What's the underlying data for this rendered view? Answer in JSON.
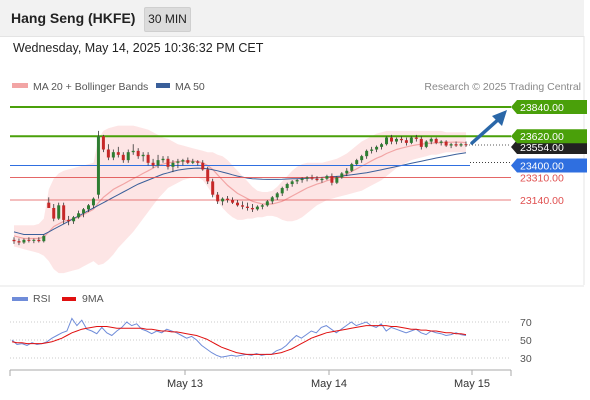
{
  "header": {
    "title": "Hang Seng (HKFE)",
    "interval": "30 MIN",
    "datetime": "Wednesday, May 14, 2025 10:36:32 PM CET"
  },
  "legend": {
    "ma20_label": "MA 20 + Bollinger Bands",
    "ma50_label": "MA 50",
    "copyright": "Research © 2025 Trading Central",
    "rsi_label": "RSI",
    "rsi_ma_label": "9MA"
  },
  "colors": {
    "up": "#2e7d32",
    "down": "#c62828",
    "band": "#fcdcdc",
    "ma20": "#f2a5a5",
    "ma50": "#3a5f9a",
    "target": "#4aa00a",
    "pivot": "#2f6fe0",
    "support": "#e05050",
    "current": "#222222",
    "rsi": "#6f8cd9",
    "rsi_ma": "#e01010",
    "arrow": "#2a67a8"
  },
  "chart_data": [
    {
      "type": "candlestick",
      "name": "price",
      "ylim": [
        22700,
        24000
      ],
      "x_ticks": [
        "May 13",
        "May 14",
        "May 15"
      ],
      "levels": [
        {
          "value": 23840.0,
          "label": "23840.00",
          "role": "target"
        },
        {
          "value": 23620.0,
          "label": "23620.00",
          "role": "target"
        },
        {
          "value": 23554.0,
          "label": "23554.00",
          "role": "current"
        },
        {
          "value": 23400.0,
          "label": "23400.00",
          "role": "pivot"
        },
        {
          "value": 23310.0,
          "label": "23310.00",
          "role": "support"
        },
        {
          "value": 23140.0,
          "label": "23140.00",
          "role": "support"
        }
      ],
      "candles": [
        [
          22840,
          22860,
          22810,
          22830
        ],
        [
          22830,
          22850,
          22800,
          22820
        ],
        [
          22820,
          22850,
          22810,
          22840
        ],
        [
          22840,
          22860,
          22820,
          22835
        ],
        [
          22835,
          22850,
          22815,
          22840
        ],
        [
          22840,
          22860,
          22820,
          22830
        ],
        [
          22830,
          22880,
          22820,
          22870
        ],
        [
          23120,
          23160,
          23080,
          23080
        ],
        [
          23080,
          23110,
          22980,
          23000
        ],
        [
          23000,
          23120,
          22990,
          23100
        ],
        [
          23100,
          23120,
          22960,
          22990
        ],
        [
          22990,
          23020,
          22950,
          22980
        ],
        [
          22980,
          23020,
          22960,
          23010
        ],
        [
          23010,
          23060,
          23000,
          23040
        ],
        [
          23040,
          23080,
          23010,
          23070
        ],
        [
          23070,
          23110,
          23050,
          23100
        ],
        [
          23100,
          23160,
          23080,
          23150
        ],
        [
          23180,
          23660,
          23150,
          23620
        ],
        [
          23620,
          23630,
          23500,
          23520
        ],
        [
          23520,
          23560,
          23440,
          23460
        ],
        [
          23460,
          23520,
          23440,
          23500
        ],
        [
          23500,
          23540,
          23460,
          23480
        ],
        [
          23480,
          23500,
          23420,
          23440
        ],
        [
          23440,
          23520,
          23420,
          23500
        ],
        [
          23500,
          23560,
          23480,
          23510
        ],
        [
          23510,
          23530,
          23450,
          23470
        ],
        [
          23470,
          23500,
          23430,
          23480
        ],
        [
          23480,
          23500,
          23400,
          23420
        ],
        [
          23420,
          23450,
          23380,
          23400
        ],
        [
          23400,
          23480,
          23380,
          23440
        ],
        [
          23440,
          23470,
          23420,
          23450
        ],
        [
          23450,
          23470,
          23370,
          23390
        ],
        [
          23390,
          23440,
          23350,
          23420
        ],
        [
          23420,
          23450,
          23380,
          23430
        ],
        [
          23430,
          23450,
          23400,
          23440
        ],
        [
          23440,
          23460,
          23410,
          23420
        ],
        [
          23420,
          23450,
          23410,
          23430
        ],
        [
          23430,
          23440,
          23400,
          23420
        ],
        [
          23420,
          23440,
          23360,
          23370
        ],
        [
          23370,
          23390,
          23260,
          23280
        ],
        [
          23280,
          23300,
          23160,
          23180
        ],
        [
          23180,
          23200,
          23110,
          23130
        ],
        [
          23130,
          23160,
          23100,
          23150
        ],
        [
          23150,
          23170,
          23120,
          23140
        ],
        [
          23140,
          23160,
          23110,
          23120
        ],
        [
          23120,
          23140,
          23090,
          23100
        ],
        [
          23100,
          23130,
          23070,
          23090
        ],
        [
          23090,
          23120,
          23060,
          23080
        ],
        [
          23080,
          23110,
          23050,
          23070
        ],
        [
          23070,
          23100,
          23060,
          23090
        ],
        [
          23090,
          23110,
          23070,
          23100
        ],
        [
          23100,
          23140,
          23090,
          23130
        ],
        [
          23130,
          23170,
          23110,
          23160
        ],
        [
          23160,
          23200,
          23140,
          23190
        ],
        [
          23190,
          23240,
          23170,
          23230
        ],
        [
          23230,
          23270,
          23210,
          23260
        ],
        [
          23260,
          23290,
          23240,
          23280
        ],
        [
          23280,
          23300,
          23260,
          23290
        ],
        [
          23290,
          23310,
          23270,
          23300
        ],
        [
          23300,
          23320,
          23280,
          23310
        ],
        [
          23310,
          23330,
          23290,
          23300
        ],
        [
          23300,
          23320,
          23280,
          23290
        ],
        [
          23290,
          23310,
          23270,
          23300
        ],
        [
          23300,
          23330,
          23290,
          23320
        ],
        [
          23320,
          23340,
          23250,
          23270
        ],
        [
          23270,
          23320,
          23260,
          23310
        ],
        [
          23310,
          23350,
          23300,
          23340
        ],
        [
          23340,
          23380,
          23320,
          23360
        ],
        [
          23360,
          23420,
          23350,
          23410
        ],
        [
          23410,
          23450,
          23400,
          23440
        ],
        [
          23440,
          23480,
          23420,
          23470
        ],
        [
          23470,
          23520,
          23450,
          23510
        ],
        [
          23510,
          23540,
          23490,
          23520
        ],
        [
          23520,
          23550,
          23500,
          23540
        ],
        [
          23540,
          23570,
          23520,
          23560
        ],
        [
          23560,
          23620,
          23550,
          23610
        ],
        [
          23610,
          23630,
          23560,
          23580
        ],
        [
          23580,
          23610,
          23560,
          23600
        ],
        [
          23600,
          23620,
          23570,
          23590
        ],
        [
          23590,
          23610,
          23550,
          23570
        ],
        [
          23570,
          23620,
          23560,
          23610
        ],
        [
          23610,
          23630,
          23580,
          23600
        ],
        [
          23600,
          23620,
          23520,
          23540
        ],
        [
          23540,
          23590,
          23530,
          23580
        ],
        [
          23580,
          23610,
          23560,
          23600
        ],
        [
          23600,
          23610,
          23560,
          23570
        ],
        [
          23570,
          23590,
          23550,
          23580
        ],
        [
          23580,
          23590,
          23540,
          23550
        ],
        [
          23550,
          23570,
          23530,
          23560
        ],
        [
          23560,
          23580,
          23540,
          23550
        ],
        [
          23550,
          23570,
          23540,
          23560
        ],
        [
          23560,
          23580,
          23540,
          23554
        ]
      ],
      "ma20": [
        22870,
        22860,
        22850,
        22850,
        22850,
        22850,
        22860,
        22900,
        22940,
        22960,
        22980,
        22990,
        23000,
        23010,
        23030,
        23050,
        23070,
        23120,
        23160,
        23190,
        23220,
        23240,
        23260,
        23280,
        23300,
        23320,
        23340,
        23360,
        23380,
        23400,
        23410,
        23420,
        23425,
        23430,
        23432,
        23433,
        23432,
        23430,
        23420,
        23400,
        23370,
        23330,
        23290,
        23250,
        23220,
        23190,
        23170,
        23150,
        23130,
        23120,
        23110,
        23110,
        23110,
        23120,
        23130,
        23150,
        23170,
        23190,
        23210,
        23230,
        23245,
        23260,
        23270,
        23285,
        23295,
        23305,
        23320,
        23335,
        23355,
        23375,
        23395,
        23415,
        23435,
        23455,
        23470,
        23490,
        23505,
        23520,
        23530,
        23540,
        23548,
        23555,
        23560,
        23565,
        23568,
        23570,
        23572,
        23574,
        23575,
        23576,
        23575,
        23572
      ],
      "bb_upper": [
        22950,
        22950,
        22950,
        22950,
        22950,
        22960,
        23000,
        23220,
        23300,
        23340,
        23360,
        23370,
        23380,
        23390,
        23400,
        23410,
        23420,
        23600,
        23660,
        23680,
        23690,
        23700,
        23700,
        23700,
        23700,
        23690,
        23680,
        23670,
        23650,
        23630,
        23610,
        23600,
        23580,
        23560,
        23550,
        23540,
        23530,
        23520,
        23510,
        23500,
        23500,
        23480,
        23470,
        23440,
        23400,
        23360,
        23320,
        23280,
        23240,
        23210,
        23200,
        23200,
        23210,
        23240,
        23280,
        23320,
        23360,
        23390,
        23410,
        23420,
        23420,
        23420,
        23420,
        23430,
        23440,
        23450,
        23470,
        23490,
        23520,
        23550,
        23580,
        23600,
        23620,
        23640,
        23650,
        23660,
        23660,
        23660,
        23660,
        23660,
        23660,
        23660,
        23660,
        23660,
        23660,
        23660,
        23660,
        23650,
        23650,
        23650,
        23650,
        23650
      ],
      "bb_lower": [
        22790,
        22780,
        22770,
        22760,
        22750,
        22740,
        22720,
        22680,
        22620,
        22590,
        22590,
        22600,
        22610,
        22620,
        22640,
        22660,
        22680,
        22650,
        22660,
        22690,
        22730,
        22780,
        22820,
        22860,
        22900,
        22950,
        23000,
        23050,
        23100,
        23150,
        23190,
        23230,
        23250,
        23270,
        23290,
        23300,
        23310,
        23310,
        23290,
        23240,
        23180,
        23130,
        23080,
        23040,
        23010,
        22990,
        22990,
        23000,
        23000,
        23010,
        23010,
        23020,
        23020,
        23010,
        22990,
        22980,
        22980,
        22990,
        23010,
        23040,
        23070,
        23100,
        23120,
        23140,
        23150,
        23160,
        23170,
        23180,
        23190,
        23200,
        23210,
        23230,
        23250,
        23270,
        23290,
        23320,
        23350,
        23380,
        23400,
        23420,
        23440,
        23450,
        23460,
        23470,
        23480,
        23480,
        23490,
        23500,
        23500,
        23500,
        23500,
        23500
      ],
      "ma50": [
        22900,
        22890,
        22880,
        22880,
        22880,
        22880,
        22880,
        22900,
        22920,
        22940,
        22960,
        22980,
        23000,
        23020,
        23040,
        23060,
        23080,
        23100,
        23120,
        23140,
        23160,
        23180,
        23200,
        23220,
        23240,
        23260,
        23275,
        23290,
        23305,
        23320,
        23335,
        23345,
        23355,
        23365,
        23370,
        23375,
        23378,
        23380,
        23378,
        23375,
        23368,
        23360,
        23350,
        23340,
        23330,
        23320,
        23312,
        23305,
        23300,
        23298,
        23296,
        23295,
        23295,
        23295,
        23296,
        23298,
        23300,
        23300,
        23302,
        23304,
        23306,
        23308,
        23310,
        23312,
        23315,
        23318,
        23320,
        23325,
        23330,
        23335,
        23340,
        23345,
        23352,
        23360,
        23368,
        23376,
        23384,
        23392,
        23400,
        23408,
        23416,
        23424,
        23432,
        23440,
        23448,
        23456,
        23463,
        23470,
        23477,
        23484,
        23490,
        23496
      ]
    },
    {
      "type": "line",
      "name": "rsi",
      "ylim": [
        20,
        85
      ],
      "y_ticks": [
        70,
        50,
        30
      ],
      "x_ticks": [
        "May 13",
        "May 14",
        "May 15"
      ],
      "series": [
        {
          "name": "RSI",
          "values": [
            50,
            45,
            46,
            44,
            47,
            45,
            46,
            48,
            52,
            55,
            58,
            60,
            74,
            66,
            72,
            62,
            60,
            57,
            64,
            58,
            55,
            60,
            64,
            70,
            66,
            68,
            62,
            60,
            57,
            60,
            58,
            62,
            60,
            58,
            55,
            52,
            54,
            50,
            44,
            40,
            36,
            33,
            31,
            32,
            33,
            32,
            33,
            34,
            33,
            35,
            33,
            34,
            34,
            38,
            40,
            44,
            50,
            55,
            52,
            56,
            60,
            58,
            64,
            66,
            62,
            58,
            62,
            66,
            70,
            66,
            68,
            70,
            66,
            64,
            68,
            60,
            64,
            62,
            60,
            58,
            60,
            62,
            58,
            56,
            60,
            58,
            57,
            55,
            56,
            58,
            56,
            55
          ]
        },
        {
          "name": "9MA",
          "values": [
            48,
            47,
            47,
            46,
            46,
            46,
            46,
            47,
            48,
            50,
            52,
            55,
            58,
            60,
            62,
            63,
            64,
            65,
            65,
            65,
            64,
            63,
            63,
            63,
            63,
            63,
            63,
            62,
            62,
            61,
            60,
            60,
            59,
            59,
            58,
            57,
            56,
            55,
            53,
            51,
            48,
            45,
            42,
            40,
            38,
            36,
            35,
            34,
            34,
            34,
            34,
            34,
            34,
            35,
            36,
            38,
            40,
            43,
            46,
            49,
            52,
            54,
            56,
            58,
            59,
            60,
            61,
            62,
            63,
            64,
            65,
            66,
            66,
            66,
            66,
            66,
            65,
            65,
            64,
            63,
            62,
            62,
            61,
            61,
            60,
            60,
            59,
            58,
            58,
            57,
            57,
            56
          ]
        }
      ]
    }
  ]
}
